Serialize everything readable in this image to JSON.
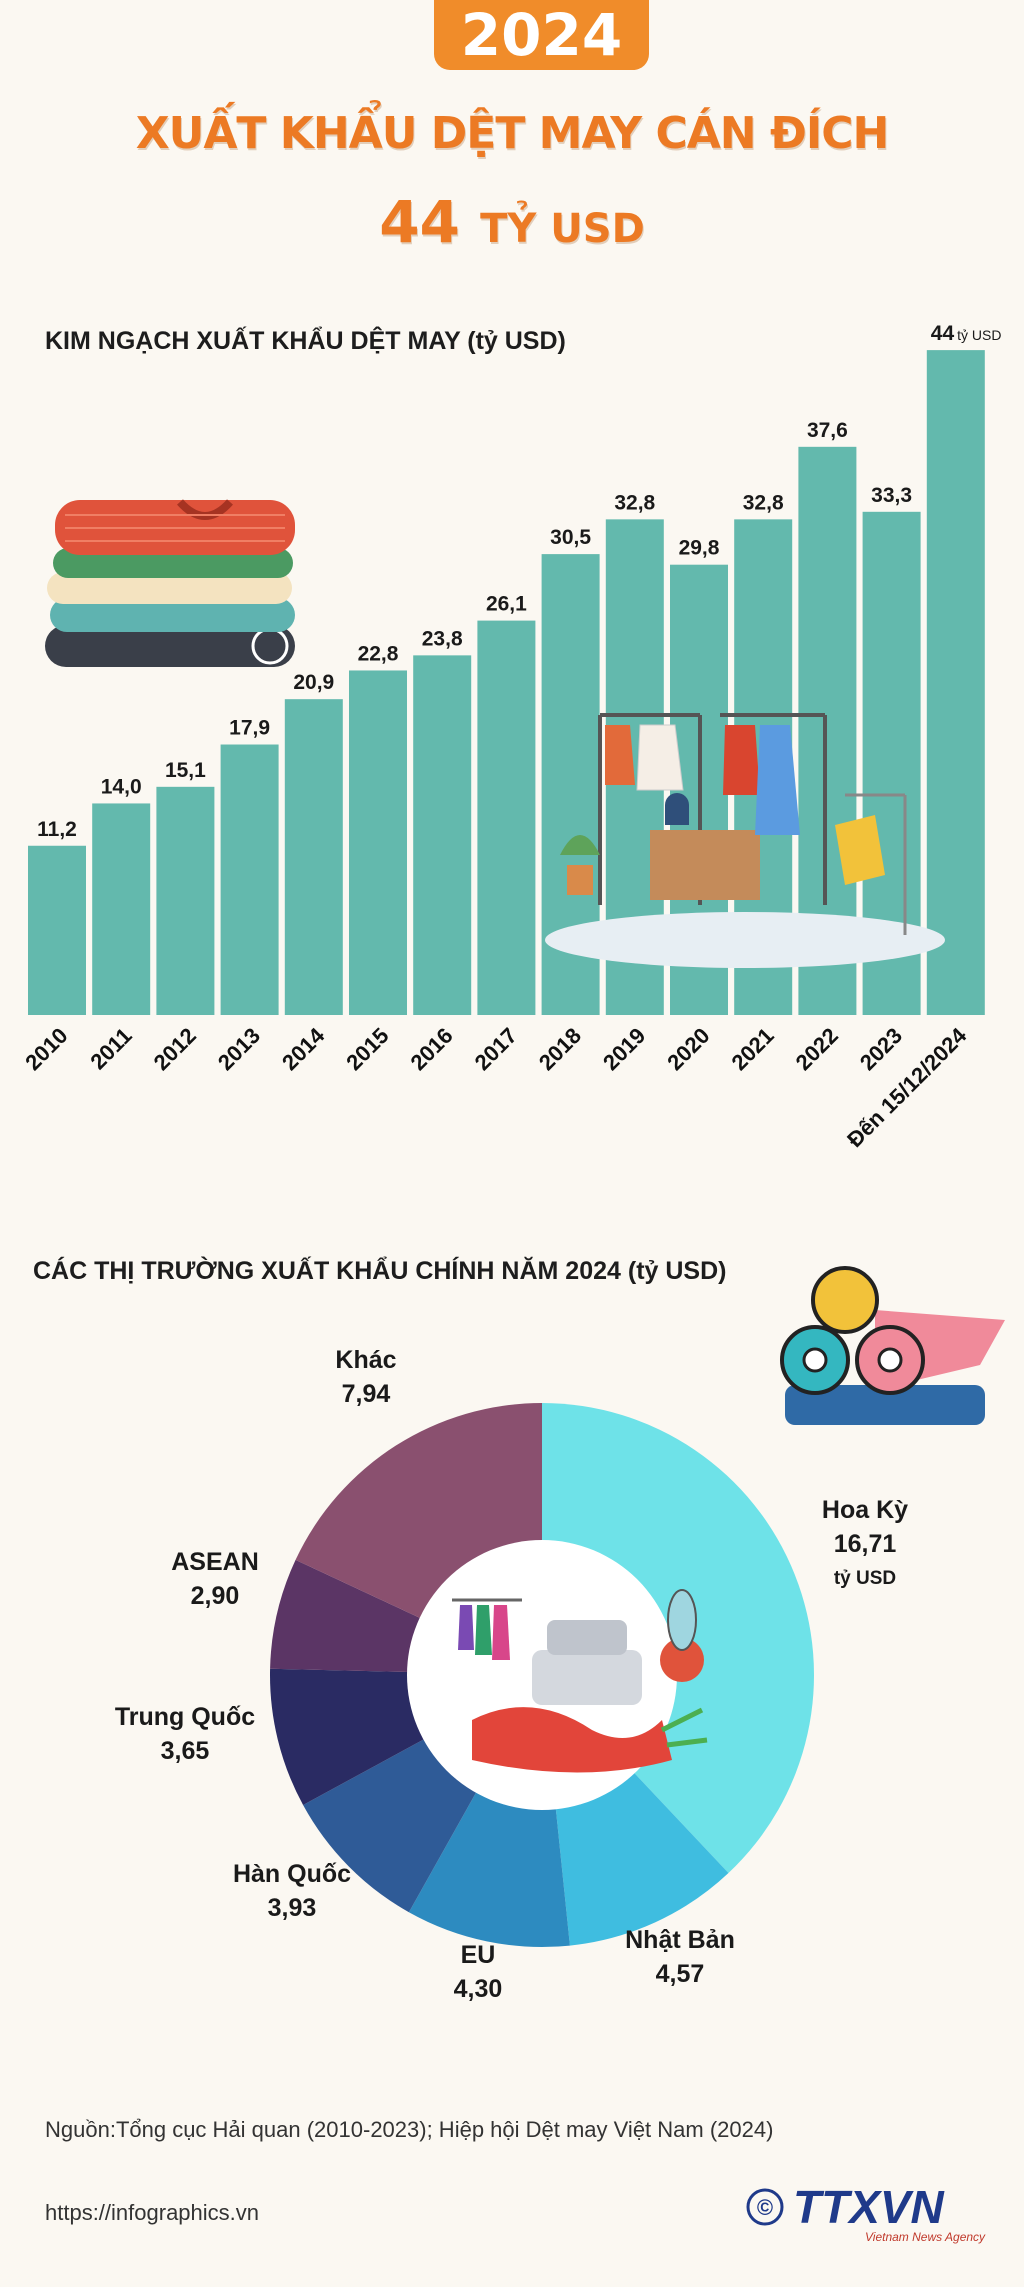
{
  "header": {
    "year": "2024",
    "headline_line1": "XUẤT KHẨU DỆT MAY CÁN ĐÍCH",
    "headline_number": "44",
    "headline_unit": "TỶ USD"
  },
  "chart_data": [
    {
      "type": "bar",
      "title": "KIM NGẠCH XUẤT KHẨU DỆT MAY (tỷ USD)",
      "categories": [
        "2010",
        "2011",
        "2012",
        "2013",
        "2014",
        "2015",
        "2016",
        "2017",
        "2018",
        "2019",
        "2020",
        "2021",
        "2022",
        "2023",
        "Đến 15/12/2024"
      ],
      "values": [
        11.2,
        14.0,
        15.1,
        17.9,
        20.9,
        22.8,
        23.8,
        26.1,
        30.5,
        32.8,
        29.8,
        32.8,
        37.6,
        33.3,
        44
      ],
      "value_labels": [
        "11,2",
        "14,0",
        "15,1",
        "17,9",
        "20,9",
        "22,8",
        "23,8",
        "26,1",
        "30,5",
        "32,8",
        "29,8",
        "32,8",
        "37,6",
        "33,3",
        "44"
      ],
      "last_label_unit": "tỷ USD",
      "bar_color": "#63b9ad",
      "ylim": [
        0,
        45
      ]
    },
    {
      "type": "pie",
      "title": "CÁC THỊ TRƯỜNG XUẤT KHẨU CHÍNH NĂM 2024 (tỷ USD)",
      "unit_label": "tỷ USD",
      "slices": [
        {
          "name": "Hoa Kỳ",
          "value": 16.71,
          "label": "16,71",
          "color": "#6ee2e8"
        },
        {
          "name": "Nhật Bản",
          "value": 4.57,
          "label": "4,57",
          "color": "#3fbde0"
        },
        {
          "name": "EU",
          "value": 4.3,
          "label": "4,30",
          "color": "#2d8bc0"
        },
        {
          "name": "Hàn Quốc",
          "value": 3.93,
          "label": "3,93",
          "color": "#2f5b97"
        },
        {
          "name": "Trung Quốc",
          "value": 3.65,
          "label": "3,65",
          "color": "#2a2b63"
        },
        {
          "name": "ASEAN",
          "value": 2.9,
          "label": "2,90",
          "color": "#5b3565"
        },
        {
          "name": "Khác",
          "value": 7.94,
          "label": "7,94",
          "color": "#8a506f"
        }
      ]
    }
  ],
  "footer": {
    "source": "Nguồn:Tổng cục Hải quan (2010-2023); Hiệp hội Dệt may Việt Nam (2024)",
    "url": "https://infographics.vn",
    "logo_text": "TTXVN",
    "logo_sub": "Vietnam News Agency"
  },
  "colors": {
    "accent": "#ec7a24",
    "bar": "#63b9ad"
  },
  "icons": [
    "folded-clothes-icon",
    "clothing-rack-icon",
    "fabric-rolls-icon",
    "sewing-workshop-icon"
  ]
}
